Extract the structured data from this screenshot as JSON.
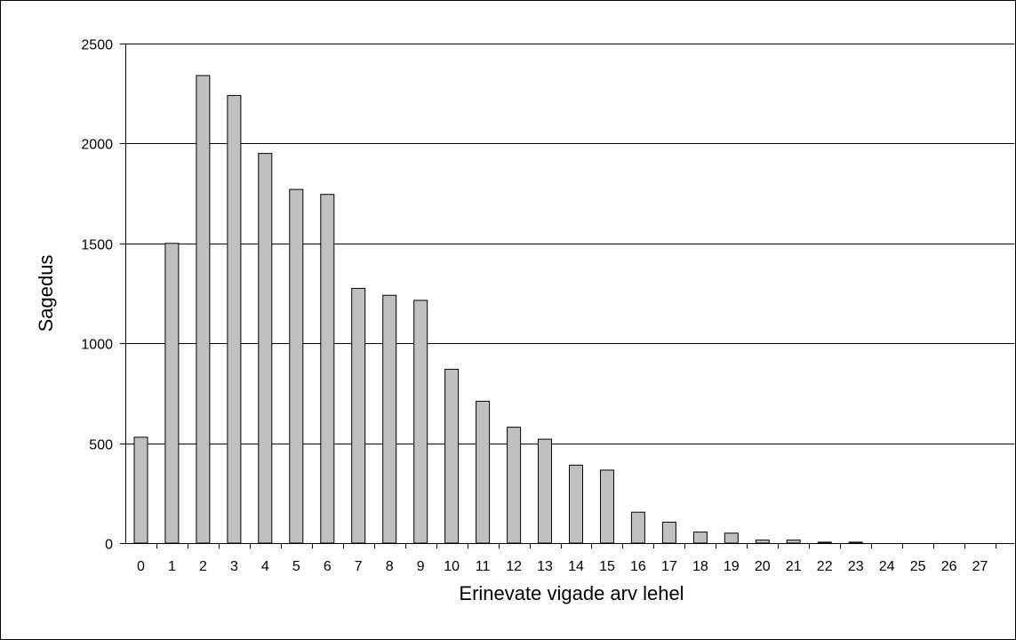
{
  "chart_data": {
    "type": "bar",
    "title": "",
    "xlabel": "Erinevate vigade arv lehel",
    "ylabel": "Sagedus",
    "categories": [
      "0",
      "1",
      "2",
      "3",
      "4",
      "5",
      "6",
      "7",
      "8",
      "9",
      "10",
      "11",
      "12",
      "13",
      "14",
      "15",
      "16",
      "17",
      "18",
      "19",
      "20",
      "21",
      "22",
      "23",
      "24",
      "25",
      "26",
      "27"
    ],
    "values": [
      530,
      1500,
      2340,
      2240,
      1950,
      1770,
      1745,
      1275,
      1240,
      1215,
      870,
      710,
      580,
      520,
      390,
      365,
      155,
      105,
      55,
      50,
      15,
      15,
      5,
      5,
      0,
      0,
      0,
      0
    ],
    "ylim": [
      0,
      2500
    ],
    "yticks": [
      0,
      500,
      1000,
      1500,
      2000,
      2500
    ],
    "grid": true,
    "legend": "none",
    "colors": {
      "bar_fill": "#c0c0c0",
      "bar_stroke": "#000000",
      "grid": "#000000",
      "background": "#ffffff"
    }
  }
}
